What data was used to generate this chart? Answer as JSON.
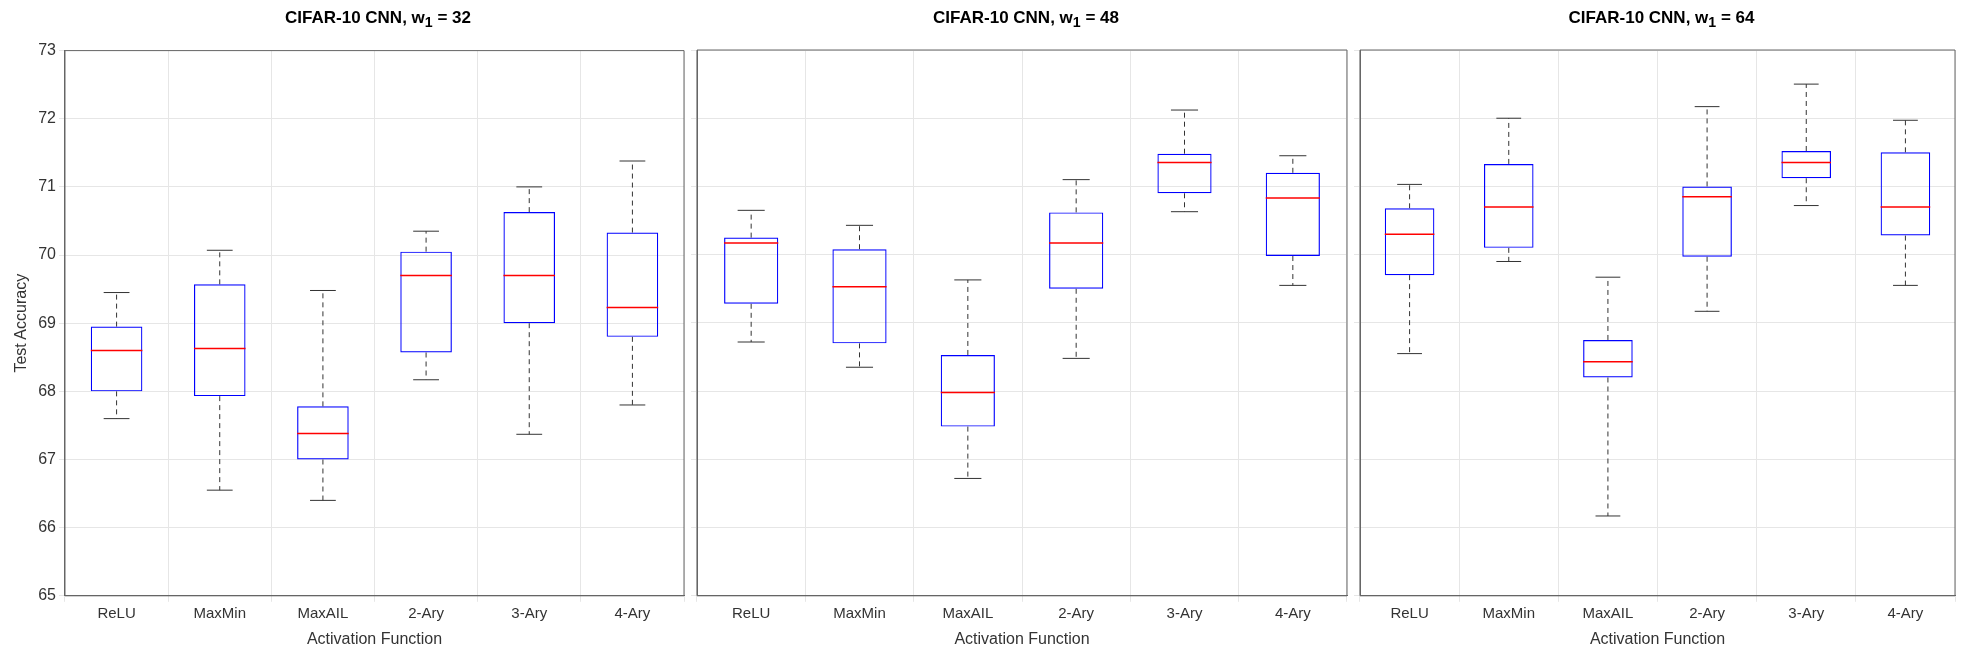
{
  "chart_data": [
    {
      "type": "box",
      "title": "CIFAR-10 CNN, w$_{1}$ = 32",
      "xlabel": "Activation Function",
      "ylabel": "Test Accuracy",
      "categories": [
        "ReLU",
        "MaxMin",
        "MaxAIL",
        "2-Ary",
        "3-Ary",
        "4-Ary"
      ],
      "ylim": [
        65,
        73
      ],
      "yticks": [
        65,
        66,
        67,
        68,
        69,
        70,
        71,
        72,
        73
      ],
      "grid": true,
      "series": [
        {
          "color": "#0000ff",
          "boxes": [
            {
              "low": 67.6,
              "q1": 68.0,
              "median": 68.6,
              "q3": 68.95,
              "high": 69.45
            },
            {
              "low": 66.55,
              "q1": 67.93,
              "median": 68.63,
              "q3": 69.57,
              "high": 70.07
            },
            {
              "low": 66.4,
              "q1": 67.0,
              "median": 67.38,
              "q3": 67.78,
              "high": 69.48
            },
            {
              "low": 68.17,
              "q1": 68.57,
              "median": 69.7,
              "q3": 70.05,
              "high": 70.35
            },
            {
              "low": 67.37,
              "q1": 69.0,
              "median": 69.7,
              "q3": 70.63,
              "high": 71.0
            },
            {
              "low": 67.8,
              "q1": 68.8,
              "median": 69.23,
              "q3": 70.33,
              "high": 71.38
            }
          ]
        }
      ]
    },
    {
      "type": "box",
      "title": "CIFAR-10 CNN, w$_{1}$ = 48",
      "xlabel": "Activation Function",
      "categories": [
        "ReLU",
        "MaxMin",
        "MaxAIL",
        "2-Ary",
        "3-Ary",
        "4-Ary"
      ],
      "ylim": [
        65,
        73
      ],
      "yticks": [
        65,
        66,
        67,
        68,
        69,
        70,
        71,
        72,
        73
      ],
      "grid": true,
      "tick_labels": "x",
      "series": [
        {
          "color": "#0000ff",
          "boxes": [
            {
              "low": 68.72,
              "q1": 69.28,
              "median": 70.17,
              "q3": 70.25,
              "high": 70.65
            },
            {
              "low": 68.35,
              "q1": 68.7,
              "median": 69.53,
              "q3": 70.08,
              "high": 70.43
            },
            {
              "low": 66.72,
              "q1": 67.48,
              "median": 67.98,
              "q3": 68.53,
              "high": 69.63
            },
            {
              "low": 68.48,
              "q1": 69.5,
              "median": 70.17,
              "q3": 70.62,
              "high": 71.1
            },
            {
              "low": 70.63,
              "q1": 70.9,
              "median": 71.35,
              "q3": 71.48,
              "high": 72.12
            },
            {
              "low": 69.55,
              "q1": 69.98,
              "median": 70.83,
              "q3": 71.2,
              "high": 71.45
            }
          ]
        }
      ]
    },
    {
      "type": "box",
      "title": "CIFAR-10 CNN, w$_{1}$ = 64",
      "xlabel": "Activation Function",
      "categories": [
        "ReLU",
        "MaxMin",
        "MaxAIL",
        "2-Ary",
        "3-Ary",
        "4-Ary"
      ],
      "ylim": [
        65,
        73
      ],
      "yticks": [
        65,
        66,
        67,
        68,
        69,
        70,
        71,
        72,
        73
      ],
      "grid": true,
      "tick_labels": "x",
      "series": [
        {
          "color": "#0000ff",
          "boxes": [
            {
              "low": 68.55,
              "q1": 69.7,
              "median": 70.3,
              "q3": 70.68,
              "high": 71.03
            },
            {
              "low": 69.9,
              "q1": 70.1,
              "median": 70.7,
              "q3": 71.33,
              "high": 72.0
            },
            {
              "low": 66.17,
              "q1": 68.2,
              "median": 68.43,
              "q3": 68.75,
              "high": 69.67
            },
            {
              "low": 69.17,
              "q1": 69.97,
              "median": 70.85,
              "q3": 71.0,
              "high": 72.17
            },
            {
              "low": 70.72,
              "q1": 71.12,
              "median": 71.35,
              "q3": 71.52,
              "high": 72.5
            },
            {
              "low": 69.55,
              "q1": 70.28,
              "median": 70.7,
              "q3": 71.5,
              "high": 71.97
            }
          ]
        }
      ]
    }
  ]
}
